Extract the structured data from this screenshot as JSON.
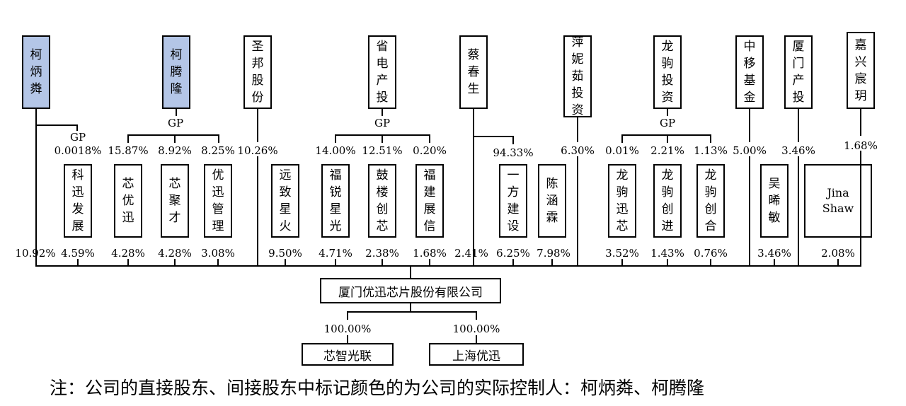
{
  "top_entities": {
    "ke_bingsu": "柯炳粦",
    "ke_tenglong": "柯腾隆",
    "shengbang": "圣邦股份",
    "shengdiantou": "省电产投",
    "cai_chunsheng": "蔡春生",
    "ping_niru": "萍妮茹投资",
    "longju": "龙驹投资",
    "zhongyi": "中移基金",
    "xiamen_chantou": "厦门产投",
    "jiaxing": "嘉兴宸玥"
  },
  "mid_entities": {
    "kexun": "科迅发展",
    "xinyouxun": "芯优迅",
    "xinjucai": "芯聚才",
    "youxun_guanli": "优迅管理",
    "yuanzhi": "远致星火",
    "furui": "福锐星光",
    "gulou": "鼓楼创芯",
    "fujian": "福建展信",
    "yifang": "一方建设",
    "chen": "陈涵霖",
    "longju_xunxin": "龙驹迅芯",
    "longju_chuangjin": "龙驹创进",
    "longju_chuanghe": "龙驹创合",
    "wu": "吴晞敏",
    "jina": "Jina Shaw"
  },
  "gp_labels": {
    "ke_bingsu": "GP",
    "ke_tenglong": "GP",
    "shengdiantou": "GP",
    "longju": "GP"
  },
  "upper_pct": {
    "kexun": "0.0018%",
    "xinyouxun": "15.87%",
    "xinjucai": "8.92%",
    "youxun_guanli": "8.25%",
    "shengbang": "10.26%",
    "furui": "14.00%",
    "gulou": "12.51%",
    "fujian": "0.20%",
    "yifang": "94.33%",
    "ping_niru": "6.30%",
    "longju_xunxin": "0.01%",
    "longju_chuangjin": "2.21%",
    "longju_chuanghe": "1.13%",
    "zhongyi": "5.00%",
    "xiamen_chantou": "3.46%",
    "jiaxing": "1.68%"
  },
  "lower_pct": {
    "ke_bingsu": "10.92%",
    "kexun": "4.59%",
    "xinyouxun": "4.28%",
    "xinjucai": "4.28%",
    "youxun_guanli": "3.08%",
    "yuanzhi": "9.50%",
    "furui": "4.71%",
    "gulou": "2.38%",
    "fujian": "1.68%",
    "cai": "2.41%",
    "yifang": "6.25%",
    "chen": "7.98%",
    "longju_xunxin": "3.52%",
    "longju_chuangjin": "1.43%",
    "longju_chuanghe": "0.76%",
    "wu": "3.46%",
    "jina": "2.08%"
  },
  "company": "厦门优迅芯片股份有限公司",
  "subsidiaries": {
    "left_name": "芯智光联",
    "left_pct": "100.00%",
    "right_name": "上海优迅",
    "right_pct": "100.00%"
  },
  "note": "注：公司的直接股东、间接股东中标记颜色的为公司的实际控制人：柯炳粦、柯腾隆",
  "colors": {
    "controller_fill": "#b4c6e7",
    "line": "#000000"
  }
}
